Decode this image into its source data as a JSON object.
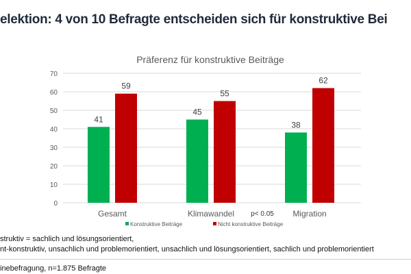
{
  "headline": "elektion: 4 von 10 Befragte entscheiden sich für konstruktive Bei",
  "chart_data": {
    "type": "bar",
    "title": "Präferenz für konstruktive Beiträge",
    "categories": [
      "Gesamt",
      "Klimawandel",
      "Migration"
    ],
    "series": [
      {
        "name": "Konstruktive Beiträge",
        "values": [
          41,
          45,
          38
        ],
        "color": "#00b050"
      },
      {
        "name": "Nicht konstruktive Beiträge",
        "values": [
          59,
          55,
          62
        ],
        "color": "#c00000"
      }
    ],
    "ylim": [
      0,
      70
    ],
    "yticks": [
      0,
      10,
      20,
      30,
      40,
      50,
      60,
      70
    ],
    "grid": true,
    "legend": "bottom",
    "annotation": "p< 0.05"
  },
  "footnotes": {
    "line1": "struktiv = sachlich und lösungsorientiert,",
    "line2": "nt-konstruktiv, unsachlich und problemorientiert, unsachlich und lösungsorientiert, sachlich und problemorientiert",
    "source": "inebefragung, n=1.875 Befragte"
  }
}
